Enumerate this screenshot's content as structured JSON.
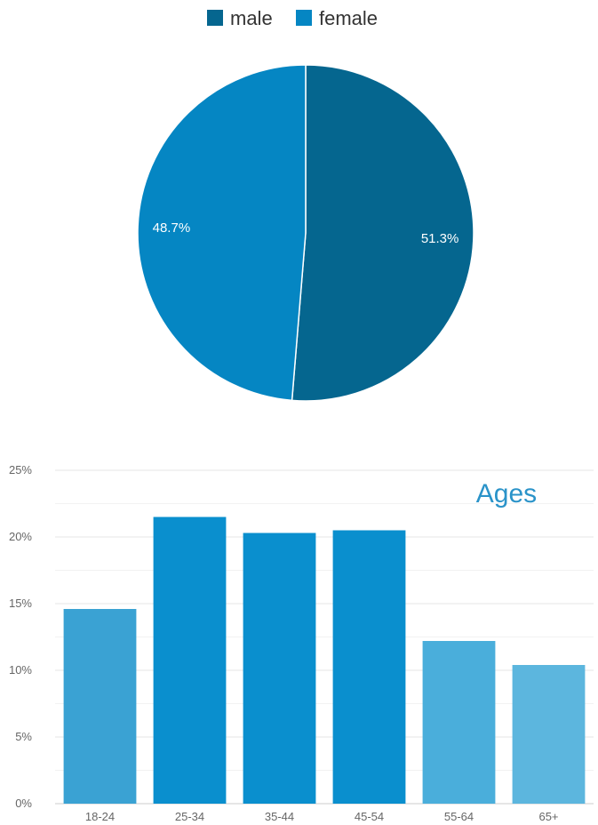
{
  "chart_data": [
    {
      "type": "pie",
      "title": "",
      "legend": {
        "placement": "top",
        "entries": [
          "male",
          "female"
        ]
      },
      "slices": [
        {
          "label": "male",
          "value": 51.3,
          "display": "51.3%",
          "color": "#05668f"
        },
        {
          "label": "female",
          "value": 48.7,
          "display": "48.7%",
          "color": "#0586c3"
        }
      ]
    },
    {
      "type": "bar",
      "title": "Ages",
      "title_color": "#2a93c9",
      "xlabel": "",
      "ylabel": "",
      "categories": [
        "18-24",
        "25-34",
        "35-44",
        "45-54",
        "55-64",
        "65+"
      ],
      "values": [
        14.6,
        21.5,
        20.3,
        20.5,
        12.2,
        10.4
      ],
      "colors": [
        "#3aa2d3",
        "#0a8fce",
        "#0a8fce",
        "#0a8fce",
        "#4aaedb",
        "#5cb6de"
      ],
      "ylim": [
        0,
        25
      ],
      "yticks": [
        0,
        5,
        10,
        15,
        20,
        25
      ],
      "ytick_labels": [
        "0%",
        "5%",
        "10%",
        "15%",
        "20%",
        "25%"
      ],
      "grid": true
    }
  ]
}
